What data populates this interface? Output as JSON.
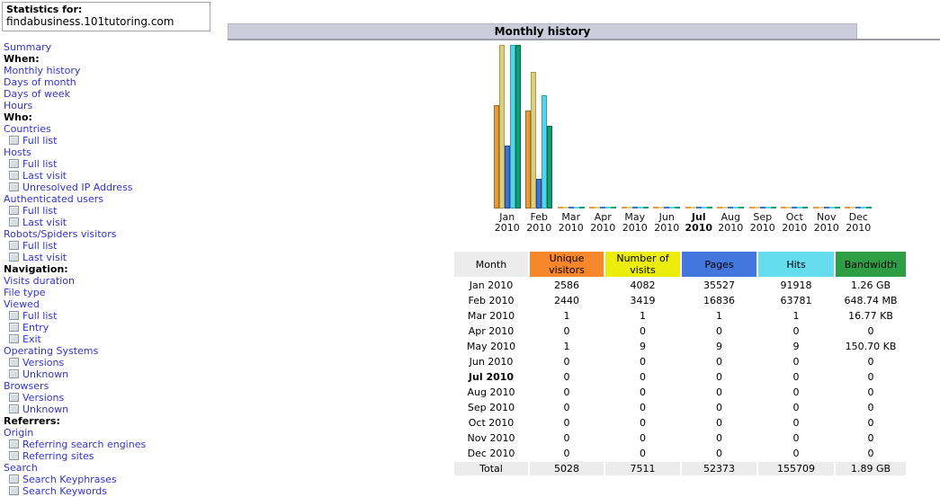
{
  "sidebar": {
    "stats_for_label": "Statistics for:",
    "domain": "findabusiness.101tutoring.com",
    "items": [
      {
        "label": "Summary",
        "type": "link"
      },
      {
        "label": "When:",
        "type": "header"
      },
      {
        "label": "Monthly history",
        "type": "link"
      },
      {
        "label": "Days of month",
        "type": "link"
      },
      {
        "label": "Days of week",
        "type": "link"
      },
      {
        "label": "Hours",
        "type": "link"
      },
      {
        "label": "Who:",
        "type": "header"
      },
      {
        "label": "Countries",
        "type": "link"
      },
      {
        "label": "Full list",
        "type": "sub"
      },
      {
        "label": "Hosts",
        "type": "link"
      },
      {
        "label": "Full list",
        "type": "sub"
      },
      {
        "label": "Last visit",
        "type": "sub"
      },
      {
        "label": "Unresolved IP Address",
        "type": "sub"
      },
      {
        "label": "Authenticated users",
        "type": "link"
      },
      {
        "label": "Full list",
        "type": "sub"
      },
      {
        "label": "Last visit",
        "type": "sub"
      },
      {
        "label": "Robots/Spiders visitors",
        "type": "link"
      },
      {
        "label": "Full list",
        "type": "sub"
      },
      {
        "label": "Last visit",
        "type": "sub"
      },
      {
        "label": "Navigation:",
        "type": "header"
      },
      {
        "label": "Visits duration",
        "type": "link"
      },
      {
        "label": "File type",
        "type": "link"
      },
      {
        "label": "Viewed",
        "type": "link"
      },
      {
        "label": "Full list",
        "type": "sub"
      },
      {
        "label": "Entry",
        "type": "sub"
      },
      {
        "label": "Exit",
        "type": "sub"
      },
      {
        "label": "Operating Systems",
        "type": "link"
      },
      {
        "label": "Versions",
        "type": "sub"
      },
      {
        "label": "Unknown",
        "type": "sub"
      },
      {
        "label": "Browsers",
        "type": "link"
      },
      {
        "label": "Versions",
        "type": "sub"
      },
      {
        "label": "Unknown",
        "type": "sub"
      },
      {
        "label": "Referrers:",
        "type": "header"
      },
      {
        "label": "Origin",
        "type": "link"
      },
      {
        "label": "Referring search engines",
        "type": "sub"
      },
      {
        "label": "Referring sites",
        "type": "sub"
      },
      {
        "label": "Search",
        "type": "link"
      },
      {
        "label": "Search Keyphrases",
        "type": "sub"
      },
      {
        "label": "Search Keywords",
        "type": "sub"
      }
    ]
  },
  "main": {
    "title": "Monthly history"
  },
  "chart_data": {
    "type": "bar",
    "title": "Monthly history",
    "categories": [
      "Jan 2010",
      "Feb 2010",
      "Mar 2010",
      "Apr 2010",
      "May 2010",
      "Jun 2010",
      "Jul 2010",
      "Aug 2010",
      "Sep 2010",
      "Oct 2010",
      "Nov 2010",
      "Dec 2010"
    ],
    "current_month": "Jul 2010",
    "legend_position": "none",
    "grid": false,
    "series": [
      {
        "name": "Unique visitors",
        "color": "#E89A40",
        "border": "#A06A10",
        "scale_max": 4082,
        "values": [
          2586,
          2440,
          1,
          0,
          1,
          0,
          0,
          0,
          0,
          0,
          0,
          0
        ]
      },
      {
        "name": "Number of visits",
        "color": "#DCD07E",
        "border": "#A39B4E",
        "scale_max": 4082,
        "values": [
          4082,
          3419,
          1,
          0,
          9,
          0,
          0,
          0,
          0,
          0,
          0,
          0
        ]
      },
      {
        "name": "Pages",
        "color": "#4170CE",
        "border": "#27459E",
        "scale_max": 91918,
        "values": [
          35527,
          16836,
          1,
          0,
          9,
          0,
          0,
          0,
          0,
          0,
          0,
          0
        ]
      },
      {
        "name": "Hits",
        "color": "#55D4E4",
        "border": "#2BA4B8",
        "scale_max": 91918,
        "values": [
          91918,
          63781,
          1,
          0,
          9,
          0,
          0,
          0,
          0,
          0,
          0,
          0
        ]
      },
      {
        "name": "Bandwidth (MB)",
        "color": "#0E9E74",
        "border": "#09664B",
        "scale_max": 1290.24,
        "values": [
          1290.24,
          648.74,
          0.0164,
          0,
          0.1472,
          0,
          0,
          0,
          0,
          0,
          0,
          0
        ]
      }
    ],
    "bandwidth_labels": [
      "1.26 GB",
      "648.74 MB",
      "16.77 KB",
      "0",
      "150.70 KB",
      "0",
      "0",
      "0",
      "0",
      "0",
      "0",
      "0"
    ]
  },
  "table": {
    "headers": [
      {
        "label": "Month",
        "color": "#ECECEC"
      },
      {
        "label": "Unique visitors",
        "color": "#F8872B"
      },
      {
        "label": "Number of visits",
        "color": "#EDED0B"
      },
      {
        "label": "Pages",
        "color": "#4477DD"
      },
      {
        "label": "Hits",
        "color": "#66DDEE"
      },
      {
        "label": "Bandwidth",
        "color": "#2E9E45"
      }
    ],
    "rows": [
      {
        "month": "Jan 2010",
        "bold": false,
        "values": [
          "2586",
          "4082",
          "35527",
          "91918",
          "1.26 GB"
        ]
      },
      {
        "month": "Feb 2010",
        "bold": false,
        "values": [
          "2440",
          "3419",
          "16836",
          "63781",
          "648.74 MB"
        ]
      },
      {
        "month": "Mar 2010",
        "bold": false,
        "values": [
          "1",
          "1",
          "1",
          "1",
          "16.77 KB"
        ]
      },
      {
        "month": "Apr 2010",
        "bold": false,
        "values": [
          "0",
          "0",
          "0",
          "0",
          "0"
        ]
      },
      {
        "month": "May 2010",
        "bold": false,
        "values": [
          "1",
          "9",
          "9",
          "9",
          "150.70 KB"
        ]
      },
      {
        "month": "Jun 2010",
        "bold": false,
        "values": [
          "0",
          "0",
          "0",
          "0",
          "0"
        ]
      },
      {
        "month": "Jul 2010",
        "bold": true,
        "values": [
          "0",
          "0",
          "0",
          "0",
          "0"
        ]
      },
      {
        "month": "Aug 2010",
        "bold": false,
        "values": [
          "0",
          "0",
          "0",
          "0",
          "0"
        ]
      },
      {
        "month": "Sep 2010",
        "bold": false,
        "values": [
          "0",
          "0",
          "0",
          "0",
          "0"
        ]
      },
      {
        "month": "Oct 2010",
        "bold": false,
        "values": [
          "0",
          "0",
          "0",
          "0",
          "0"
        ]
      },
      {
        "month": "Nov 2010",
        "bold": false,
        "values": [
          "0",
          "0",
          "0",
          "0",
          "0"
        ]
      },
      {
        "month": "Dec 2010",
        "bold": false,
        "values": [
          "0",
          "0",
          "0",
          "0",
          "0"
        ]
      }
    ],
    "total": {
      "label": "Total",
      "values": [
        "5028",
        "7511",
        "52373",
        "155709",
        "1.89 GB"
      ]
    }
  }
}
